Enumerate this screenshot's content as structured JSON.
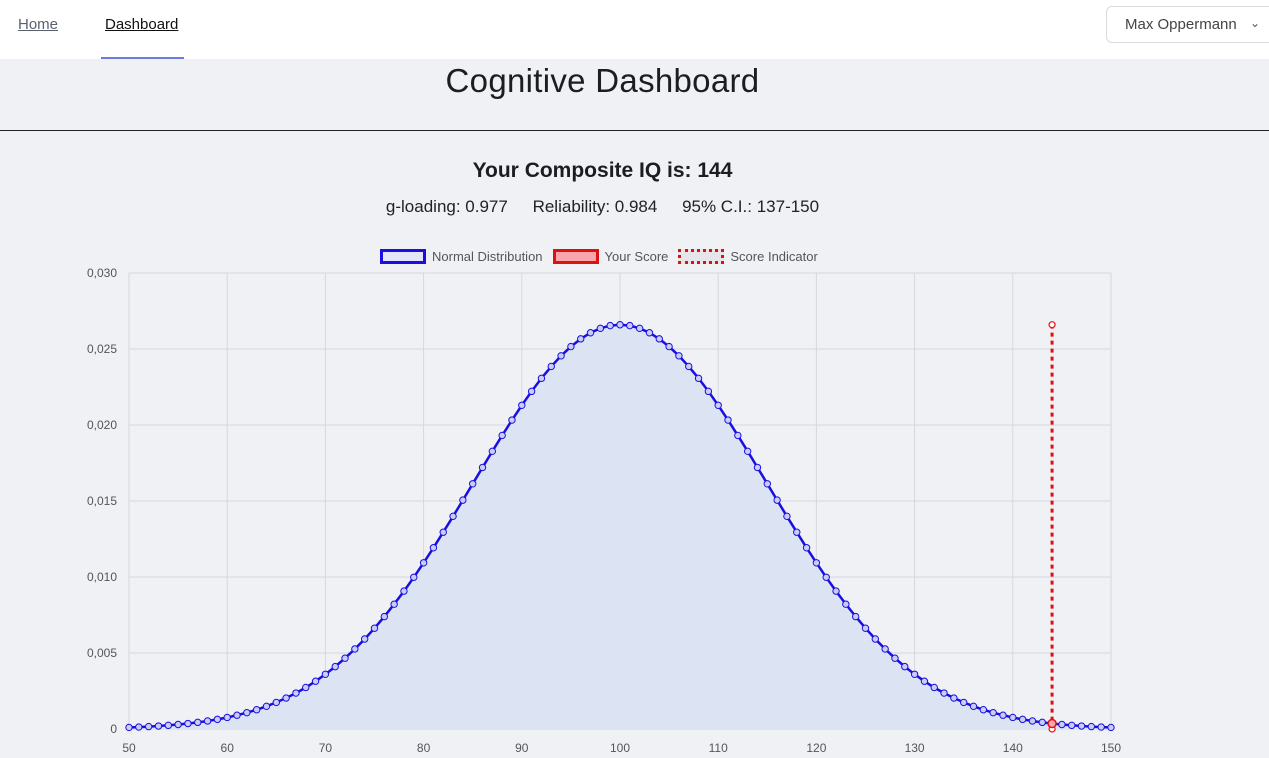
{
  "nav": {
    "home_label": "Home",
    "dashboard_label": "Dashboard",
    "user_name": "Max Oppermann"
  },
  "page": {
    "title": "Cognitive Dashboard",
    "headline": "Your Composite IQ is: 144",
    "g_loading": "g-loading: 0.977",
    "reliability": "Reliability: 0.984",
    "ci": "95% C.I.: 137-150"
  },
  "legend": {
    "normal": "Normal Distribution",
    "score": "Your Score",
    "indicator": "Score Indicator"
  },
  "colors": {
    "distribution": "#1a0fe0",
    "fill": "#dce4f4",
    "score": "#e01010",
    "grid": "#d6d8de"
  },
  "chart_data": {
    "type": "line",
    "x_ticks": [
      "50",
      "60",
      "70",
      "80",
      "90",
      "100",
      "110",
      "120",
      "130",
      "140",
      "150"
    ],
    "y_ticks": [
      "0",
      "0,005",
      "0,010",
      "0,015",
      "0,020",
      "0,025",
      "0,030"
    ],
    "xlim": [
      50,
      150
    ],
    "ylim": [
      0,
      0.03
    ],
    "distribution": {
      "mean": 100,
      "sd": 15,
      "step": 1
    },
    "your_score": 144,
    "indicator_top": 0.0266,
    "grid": true,
    "legend_position": "top"
  }
}
